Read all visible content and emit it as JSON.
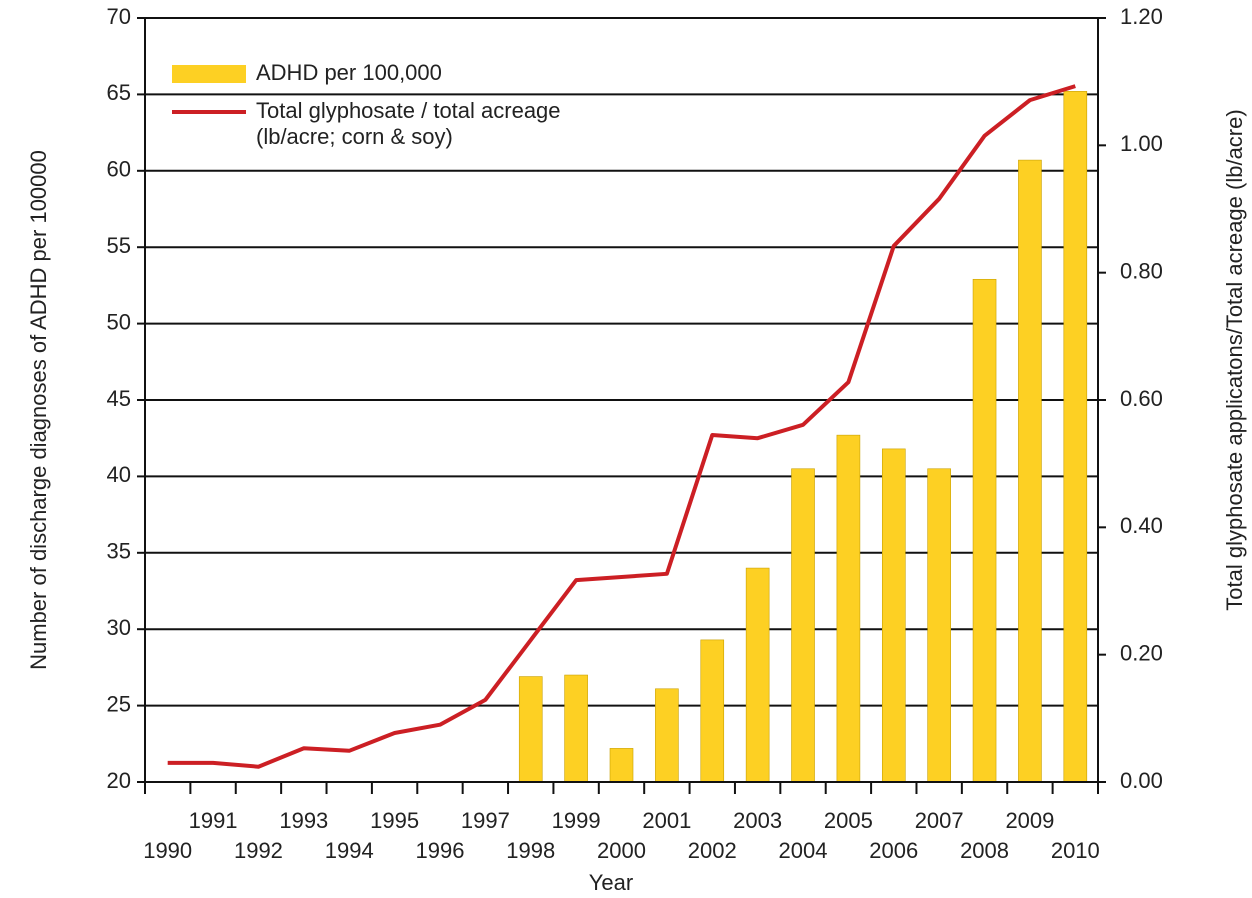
{
  "chart_data": {
    "type": "bar-line",
    "xlabel": "Year",
    "ylabel": "Number of discharge diagnoses of ADHD per 100000",
    "y2label": "Total glyphosate applicatons/Total acreage (lb/acre)",
    "categories": [
      "1990",
      "1991",
      "1992",
      "1993",
      "1994",
      "1995",
      "1996",
      "1997",
      "1998",
      "1999",
      "2000",
      "2001",
      "2002",
      "2003",
      "2004",
      "2005",
      "2006",
      "2007",
      "2008",
      "2009",
      "2010"
    ],
    "series": [
      {
        "name": "ADHD per 100,000",
        "type": "bar",
        "color": "#fdd023",
        "axis": "y",
        "values": [
          null,
          null,
          null,
          null,
          null,
          null,
          null,
          null,
          26.9,
          27.0,
          22.2,
          26.1,
          29.3,
          34.0,
          40.5,
          42.7,
          41.8,
          40.5,
          52.9,
          60.7,
          65.2
        ]
      },
      {
        "name": "Total glyphosate / total acreage (lb/acre; corn & soy)",
        "type": "line",
        "color": "#cc1f24",
        "axis": "y2",
        "values": [
          0.03,
          0.03,
          0.024,
          0.053,
          0.049,
          0.077,
          0.09,
          0.129,
          0.223,
          0.317,
          0.322,
          0.327,
          0.545,
          0.54,
          0.561,
          0.628,
          0.842,
          0.916,
          1.015,
          1.071,
          1.093
        ]
      }
    ],
    "ylim": [
      20,
      70
    ],
    "yticks": [
      20,
      25,
      30,
      35,
      40,
      45,
      50,
      55,
      60,
      65,
      70
    ],
    "y2lim": [
      0,
      1.2
    ],
    "y2ticks": [
      {
        "value": 0,
        "label": "0.00"
      },
      {
        "value": 0.2,
        "label": "0.20"
      },
      {
        "value": 0.4,
        "label": "0.40"
      },
      {
        "value": 0.6,
        "label": "0.60"
      },
      {
        "value": 0.8,
        "label": "0.80"
      },
      {
        "value": 1.0,
        "label": "1.00"
      },
      {
        "value": 1.2,
        "label": "1.20"
      }
    ],
    "grid": true,
    "legend": "upper left"
  }
}
